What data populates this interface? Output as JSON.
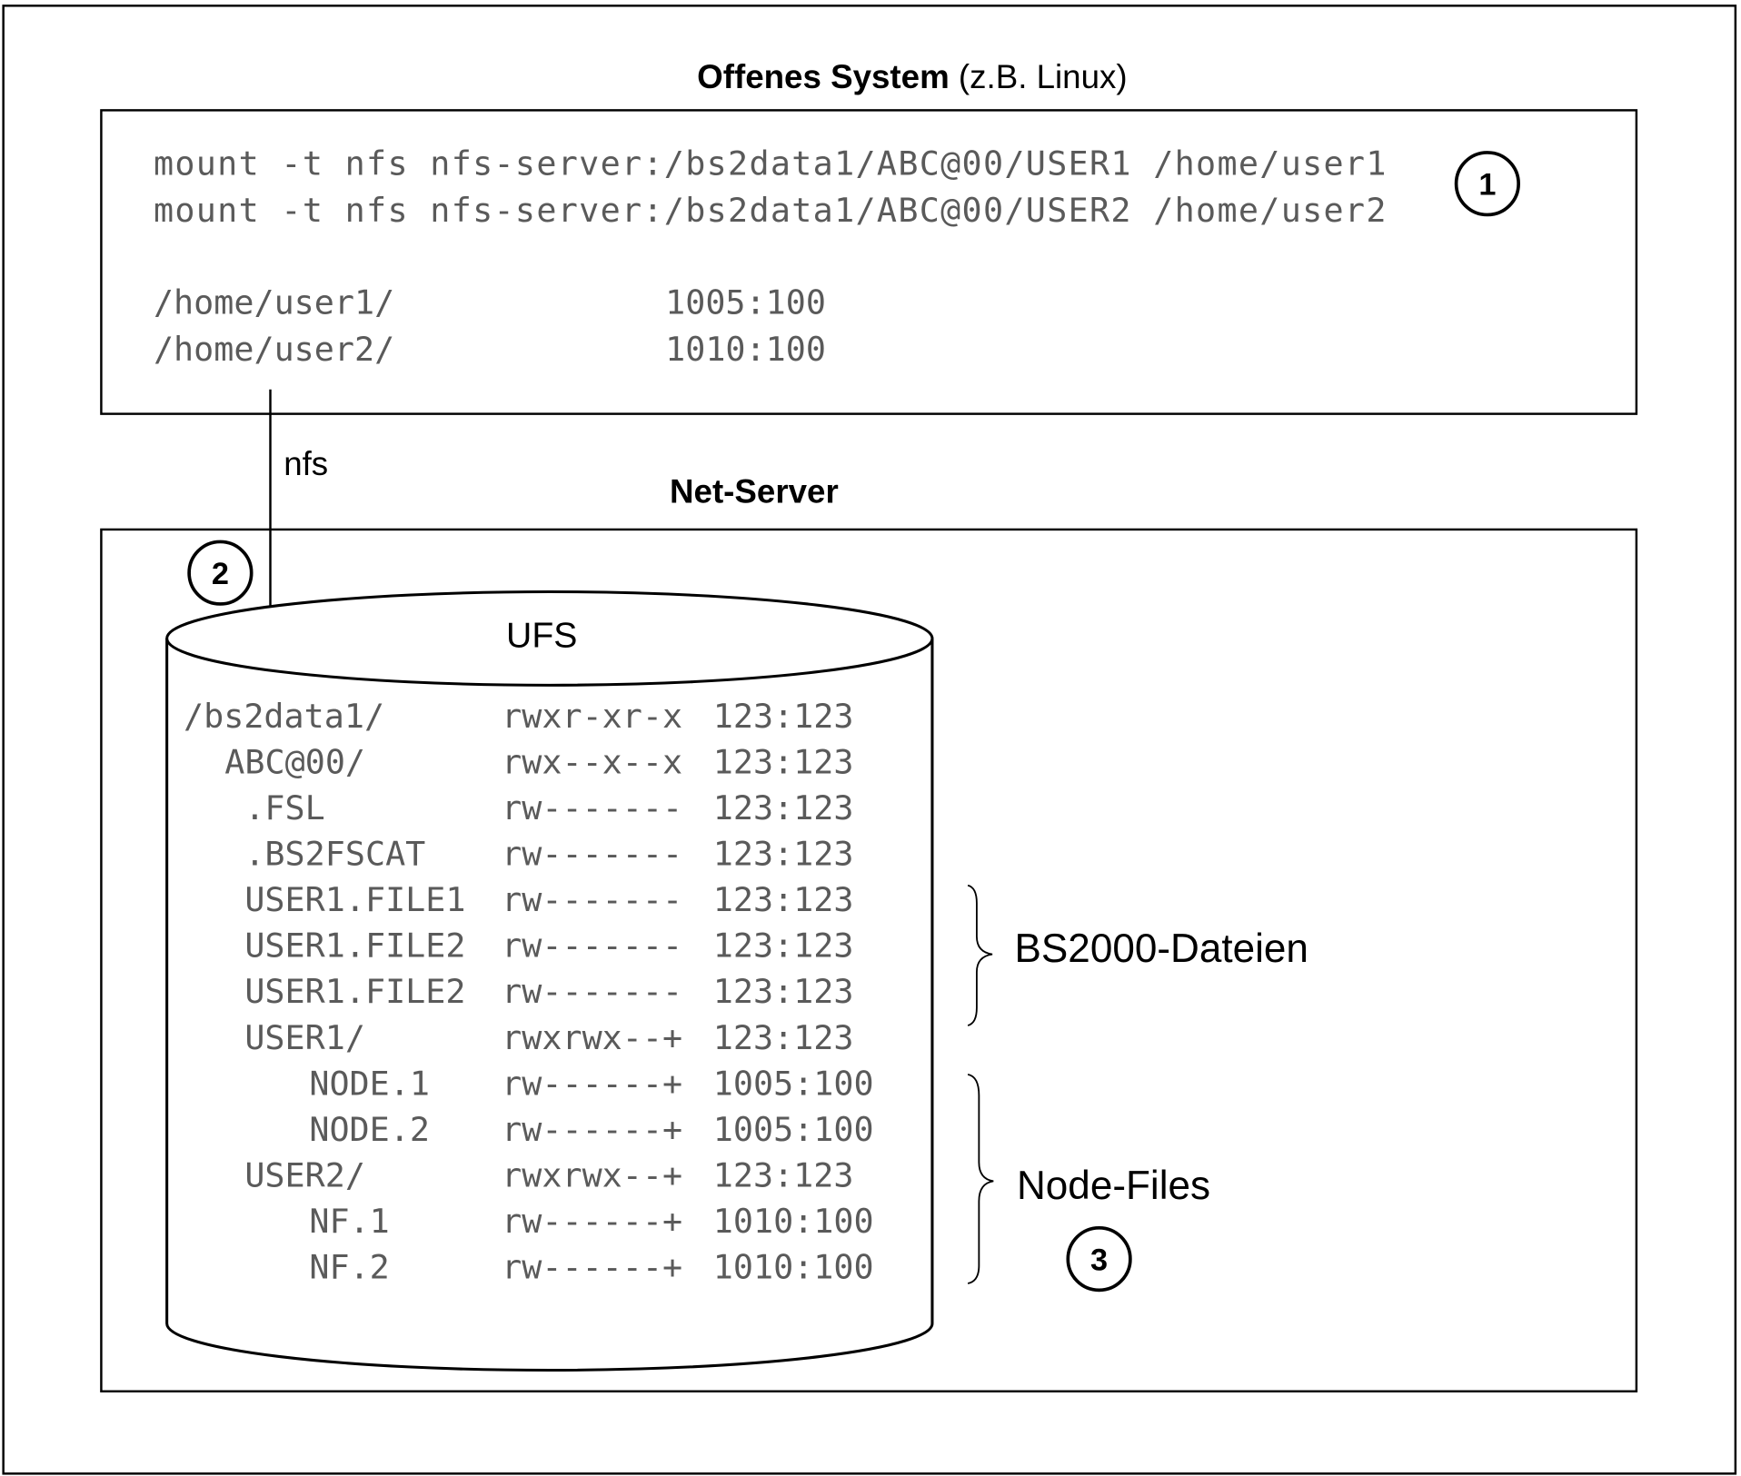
{
  "top_section": {
    "title_bold": "Offenes System",
    "title_rest": " (z.B. Linux)",
    "commands": [
      "mount -t nfs nfs-server:/bs2data1/ABC@00/USER1 /home/user1",
      "mount -t nfs nfs-server:/bs2data1/ABC@00/USER2 /home/user2"
    ],
    "mounts": [
      {
        "path": "/home/user1/",
        "owner": "1005:100"
      },
      {
        "path": "/home/user2/",
        "owner": "1010:100"
      }
    ],
    "marker": "1"
  },
  "connection": {
    "label": "nfs"
  },
  "bottom_section": {
    "title": "Net-Server",
    "marker": "2",
    "cylinder_label": "UFS",
    "entries": [
      {
        "name": "/bs2data1/",
        "perms": "rwxr-xr-x",
        "owner": "123:123"
      },
      {
        "name": "ABC@00/",
        "perms": "rwx--x--x",
        "owner": "123:123"
      },
      {
        "name": ".FSL",
        "perms": "rw-------",
        "owner": "123:123"
      },
      {
        "name": ".BS2FSCAT",
        "perms": "rw-------",
        "owner": "123:123"
      },
      {
        "name": "USER1.FILE1",
        "perms": "rw-------",
        "owner": "123:123"
      },
      {
        "name": "USER1.FILE2",
        "perms": "rw-------",
        "owner": "123:123"
      },
      {
        "name": "USER1.FILE2",
        "perms": "rw-------",
        "owner": "123:123"
      },
      {
        "name": "USER1/",
        "perms": "rwxrwx--+",
        "owner": "123:123"
      },
      {
        "name": "NODE.1",
        "perms": "rw------+",
        "owner": "1005:100"
      },
      {
        "name": "NODE.2",
        "perms": "rw------+",
        "owner": "1005:100"
      },
      {
        "name": "USER2/",
        "perms": "rwxrwx--+",
        "owner": "123:123"
      },
      {
        "name": "NF.1",
        "perms": "rw------+",
        "owner": "1010:100"
      },
      {
        "name": "NF.2",
        "perms": "rw------+",
        "owner": "1010:100"
      }
    ],
    "group_bs2000": "BS2000-Dateien",
    "group_nodes": "Node-Files",
    "marker_nodes": "3"
  }
}
